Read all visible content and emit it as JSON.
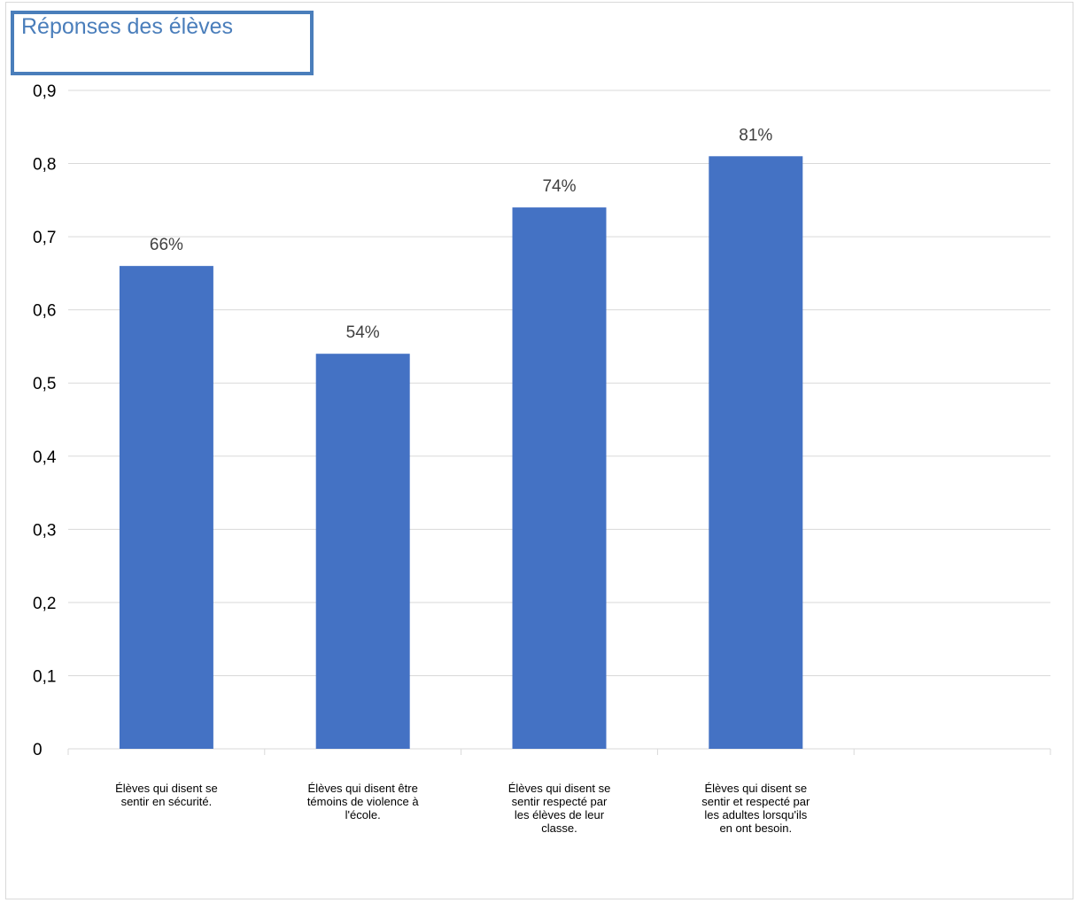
{
  "chart_data": {
    "type": "bar",
    "title": "Réponses des élèves",
    "categories": [
      "Élèves qui disent se sentir en sécurité.",
      "Élèves qui disent être témoins de violence à l'école.",
      "Élèves qui disent se sentir respecté par les élèves de leur classe.",
      "Élèves qui disent se sentir et respecté par les adultes lorsqu'ils en ont besoin."
    ],
    "category_label_lines": [
      [
        "Élèves qui disent se",
        "sentir en sécurité."
      ],
      [
        "Élèves qui disent être",
        "témoins de violence à",
        "l'école."
      ],
      [
        "Élèves qui disent se",
        "sentir respecté par",
        "les élèves de leur",
        "classe."
      ],
      [
        "Élèves qui disent se",
        "sentir et respecté par",
        "les adultes lorsqu'ils",
        "en ont besoin."
      ]
    ],
    "values": [
      0.66,
      0.54,
      0.74,
      0.81
    ],
    "data_labels": [
      "66%",
      "54%",
      "74%",
      "81%"
    ],
    "yticks": [
      "0",
      "0,1",
      "0,2",
      "0,3",
      "0,4",
      "0,5",
      "0,6",
      "0,7",
      "0,8",
      "0,9"
    ],
    "ylim": [
      0,
      0.9
    ],
    "n_slots": 5,
    "grid": true,
    "bar_color": "#4472c4",
    "grid_color": "#d9d9d9"
  }
}
